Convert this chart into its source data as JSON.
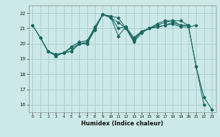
{
  "bg_color": "#cce8e8",
  "grid_color": "#aacece",
  "line_color": "#1a6860",
  "xlabel": "Humidex (Indice chaleur)",
  "xlim": [
    -0.5,
    23.5
  ],
  "ylim": [
    15.5,
    22.5
  ],
  "yticks": [
    16,
    17,
    18,
    19,
    20,
    21,
    22
  ],
  "xticks": [
    0,
    1,
    2,
    3,
    4,
    5,
    6,
    7,
    8,
    9,
    10,
    11,
    12,
    13,
    14,
    15,
    16,
    17,
    18,
    19,
    20,
    21,
    22,
    23
  ],
  "figsize": [
    3.2,
    2.0
  ],
  "dpi": 100,
  "series": [
    {
      "x": [
        0,
        1,
        2,
        3,
        4,
        5,
        6,
        7,
        8,
        9,
        10,
        11,
        12,
        13,
        14,
        15,
        16,
        17,
        18,
        19,
        20,
        21
      ],
      "y": [
        21.2,
        20.4,
        19.5,
        19.3,
        19.4,
        19.5,
        20.0,
        20.0,
        21.0,
        21.9,
        21.8,
        21.7,
        21.0,
        20.1,
        20.7,
        21.0,
        21.1,
        21.2,
        21.3,
        21.1,
        21.1,
        21.2
      ]
    },
    {
      "x": [
        0,
        1,
        2,
        3,
        4,
        5,
        6,
        7,
        8,
        9,
        10,
        11,
        12,
        13,
        14,
        15,
        16,
        17,
        18,
        19,
        20,
        21,
        22
      ],
      "y": [
        21.2,
        20.4,
        19.5,
        19.2,
        19.4,
        19.5,
        20.0,
        20.0,
        20.9,
        21.9,
        21.8,
        20.5,
        21.1,
        20.2,
        20.8,
        21.0,
        21.1,
        21.2,
        21.4,
        21.2,
        21.2,
        18.5,
        16.0
      ]
    },
    {
      "x": [
        1,
        2,
        3,
        4,
        5,
        6,
        7,
        8,
        9,
        10,
        11,
        12,
        13,
        14,
        15,
        16,
        17,
        18,
        19,
        20
      ],
      "y": [
        20.4,
        19.5,
        19.2,
        19.4,
        19.7,
        20.0,
        20.1,
        21.1,
        21.9,
        21.7,
        21.4,
        21.0,
        20.3,
        20.8,
        21.0,
        21.3,
        21.5,
        21.5,
        21.5,
        21.2
      ]
    },
    {
      "x": [
        2,
        3,
        4,
        5,
        6,
        7,
        8,
        9,
        10,
        11,
        12,
        13,
        14,
        15,
        16,
        17,
        18,
        19,
        20,
        21,
        22,
        23
      ],
      "y": [
        19.5,
        19.2,
        19.4,
        19.8,
        20.1,
        20.2,
        21.0,
        21.9,
        21.8,
        21.0,
        21.1,
        20.4,
        20.8,
        21.0,
        21.2,
        21.4,
        21.5,
        21.2,
        21.2,
        18.5,
        16.5,
        15.7
      ]
    }
  ]
}
